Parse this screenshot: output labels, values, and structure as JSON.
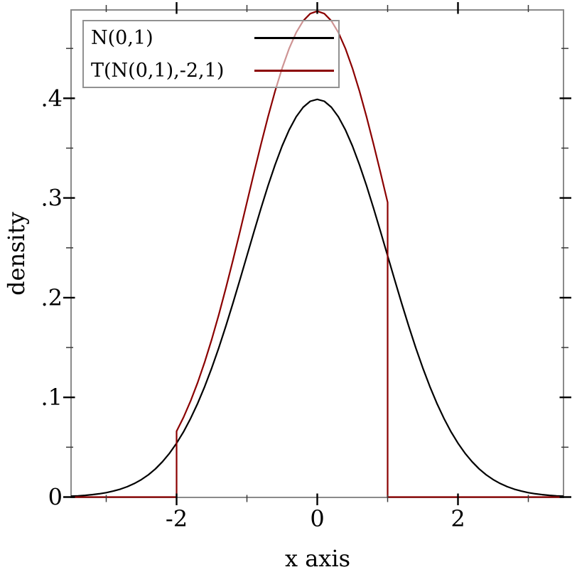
{
  "chart_data": {
    "type": "line",
    "title": "",
    "xlabel": "x axis",
    "ylabel": "density",
    "xlim": [
      -3.5,
      3.5
    ],
    "ylim": [
      0,
      0.4886
    ],
    "grid": false,
    "frame_color": "#8a8a8a",
    "tick_color": "#000000",
    "x_major_ticks": [
      -2,
      0,
      2
    ],
    "x_tick_labels": [
      "-2",
      "0",
      "2"
    ],
    "x_minor_ticks": [
      -3,
      -1,
      1,
      3
    ],
    "y_major_ticks": [
      0,
      0.1,
      0.2,
      0.3,
      0.4
    ],
    "y_tick_labels": [
      "0",
      ".1",
      ".2",
      ".3",
      ".4"
    ],
    "y_minor_ticks": [
      0.05,
      0.15,
      0.25,
      0.35,
      0.45
    ],
    "legend": {
      "position": "top-left",
      "entries": [
        {
          "label": "N(0,1)",
          "color": "#000000"
        },
        {
          "label": "T(N(0,1),-2,1)",
          "color": "#8b0000"
        }
      ]
    },
    "series": [
      {
        "name": "N(0,1)",
        "color": "#000000",
        "points": [
          [
            -3.5,
            0.0009
          ],
          [
            -3.4,
            0.0012
          ],
          [
            -3.3,
            0.0017
          ],
          [
            -3.2,
            0.0024
          ],
          [
            -3.1,
            0.0033
          ],
          [
            -3.0,
            0.0044
          ],
          [
            -2.9,
            0.006
          ],
          [
            -2.8,
            0.0079
          ],
          [
            -2.7,
            0.0104
          ],
          [
            -2.6,
            0.0136
          ],
          [
            -2.5,
            0.0175
          ],
          [
            -2.4,
            0.0224
          ],
          [
            -2.3,
            0.0283
          ],
          [
            -2.2,
            0.0355
          ],
          [
            -2.1,
            0.044
          ],
          [
            -2.0,
            0.054
          ],
          [
            -1.9,
            0.0656
          ],
          [
            -1.8,
            0.079
          ],
          [
            -1.7,
            0.094
          ],
          [
            -1.6,
            0.1109
          ],
          [
            -1.5,
            0.1295
          ],
          [
            -1.4,
            0.1497
          ],
          [
            -1.3,
            0.1714
          ],
          [
            -1.2,
            0.1942
          ],
          [
            -1.1,
            0.2179
          ],
          [
            -1.0,
            0.242
          ],
          [
            -0.9,
            0.2661
          ],
          [
            -0.8,
            0.2897
          ],
          [
            -0.7,
            0.3123
          ],
          [
            -0.6,
            0.3332
          ],
          [
            -0.5,
            0.3521
          ],
          [
            -0.4,
            0.3683
          ],
          [
            -0.3,
            0.3814
          ],
          [
            -0.2,
            0.391
          ],
          [
            -0.1,
            0.397
          ],
          [
            0.0,
            0.3989
          ],
          [
            0.1,
            0.397
          ],
          [
            0.2,
            0.391
          ],
          [
            0.3,
            0.3814
          ],
          [
            0.4,
            0.3683
          ],
          [
            0.5,
            0.3521
          ],
          [
            0.6,
            0.3332
          ],
          [
            0.7,
            0.3123
          ],
          [
            0.8,
            0.2897
          ],
          [
            0.9,
            0.2661
          ],
          [
            1.0,
            0.242
          ],
          [
            1.1,
            0.2179
          ],
          [
            1.2,
            0.1942
          ],
          [
            1.3,
            0.1714
          ],
          [
            1.4,
            0.1497
          ],
          [
            1.5,
            0.1295
          ],
          [
            1.6,
            0.1109
          ],
          [
            1.7,
            0.094
          ],
          [
            1.8,
            0.079
          ],
          [
            1.9,
            0.0656
          ],
          [
            2.0,
            0.054
          ],
          [
            2.1,
            0.044
          ],
          [
            2.2,
            0.0355
          ],
          [
            2.3,
            0.0283
          ],
          [
            2.4,
            0.0224
          ],
          [
            2.5,
            0.0175
          ],
          [
            2.6,
            0.0136
          ],
          [
            2.7,
            0.0104
          ],
          [
            2.8,
            0.0079
          ],
          [
            2.9,
            0.006
          ],
          [
            3.0,
            0.0044
          ],
          [
            3.1,
            0.0033
          ],
          [
            3.2,
            0.0024
          ],
          [
            3.3,
            0.0017
          ],
          [
            3.4,
            0.0012
          ],
          [
            3.5,
            0.0009
          ]
        ]
      },
      {
        "name": "T(N(0,1),-2,1)",
        "color": "#8b0000",
        "truncation_bounds": [
          -2,
          1
        ],
        "points": [
          [
            -3.5,
            0
          ],
          [
            -2.0,
            0
          ],
          [
            -2.0,
            0.066
          ],
          [
            -1.9,
            0.0802
          ],
          [
            -1.8,
            0.0965
          ],
          [
            -1.7,
            0.1149
          ],
          [
            -1.6,
            0.1355
          ],
          [
            -1.5,
            0.1582
          ],
          [
            -1.4,
            0.1829
          ],
          [
            -1.3,
            0.2094
          ],
          [
            -1.2,
            0.2372
          ],
          [
            -1.1,
            0.2661
          ],
          [
            -1.0,
            0.2956
          ],
          [
            -0.9,
            0.3251
          ],
          [
            -0.8,
            0.3539
          ],
          [
            -0.7,
            0.3815
          ],
          [
            -0.6,
            0.4071
          ],
          [
            -0.5,
            0.4301
          ],
          [
            -0.4,
            0.4499
          ],
          [
            -0.3,
            0.4659
          ],
          [
            -0.2,
            0.4777
          ],
          [
            -0.1,
            0.4849
          ],
          [
            0.0,
            0.4874
          ],
          [
            0.1,
            0.4849
          ],
          [
            0.2,
            0.4777
          ],
          [
            0.3,
            0.4659
          ],
          [
            0.4,
            0.4499
          ],
          [
            0.5,
            0.4301
          ],
          [
            0.6,
            0.4071
          ],
          [
            0.7,
            0.3815
          ],
          [
            0.8,
            0.3539
          ],
          [
            0.9,
            0.3251
          ],
          [
            1.0,
            0.2956
          ],
          [
            1.0,
            0
          ],
          [
            3.5,
            0
          ]
        ]
      }
    ]
  }
}
